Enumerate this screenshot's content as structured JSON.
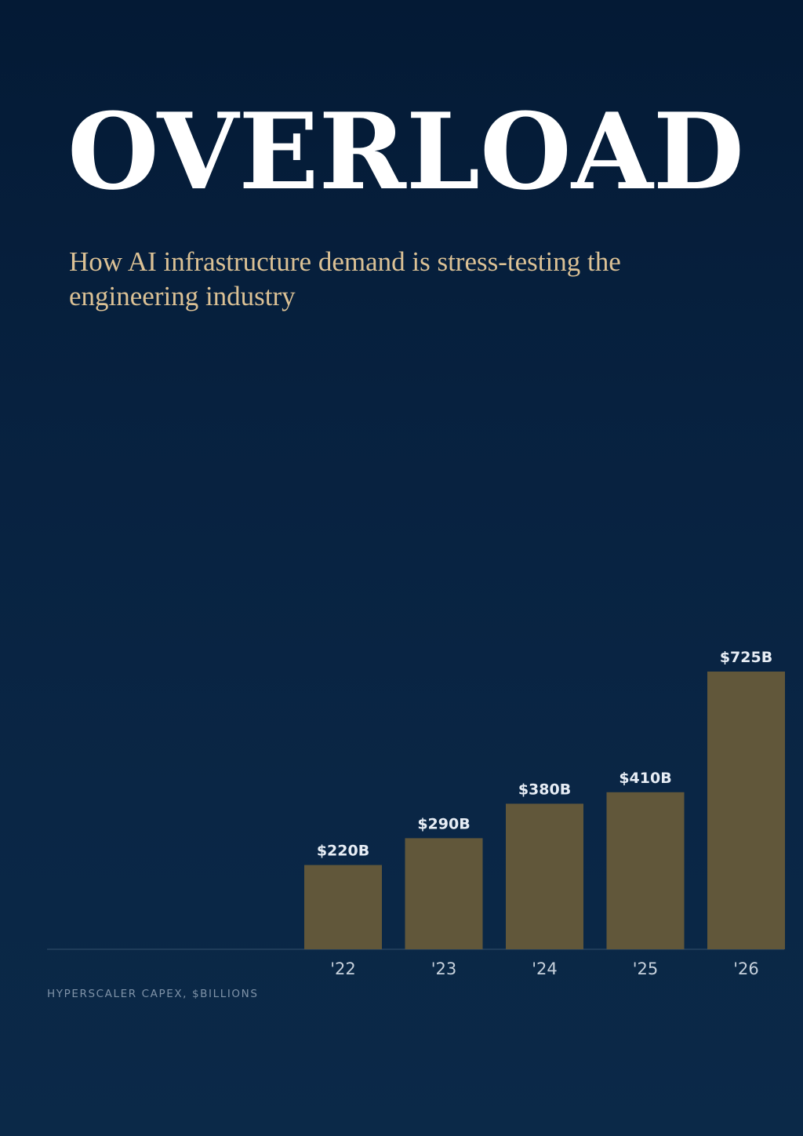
{
  "headline": {
    "title": "OVERLOAD",
    "subtitle": "How AI infrastructure demand is stress-testing the engineering industry"
  },
  "colors": {
    "bar": "#61573a",
    "value_label": "#e7edf5",
    "tick_label": "#c6d1dc",
    "baseline": "#34506b"
  },
  "chart_data": {
    "type": "bar",
    "categories": [
      "'22",
      "'23",
      "'24",
      "'25",
      "'26"
    ],
    "values": [
      220,
      290,
      380,
      410,
      725
    ],
    "data_labels": [
      "$220B",
      "$290B",
      "$380B",
      "$410B",
      "$725B"
    ],
    "title": "",
    "xlabel": "",
    "ylabel": "",
    "ylim": [
      0,
      725
    ],
    "grid": false,
    "legend": "none",
    "note": "HYPERSCALER CAPEX, $BILLIONS"
  }
}
